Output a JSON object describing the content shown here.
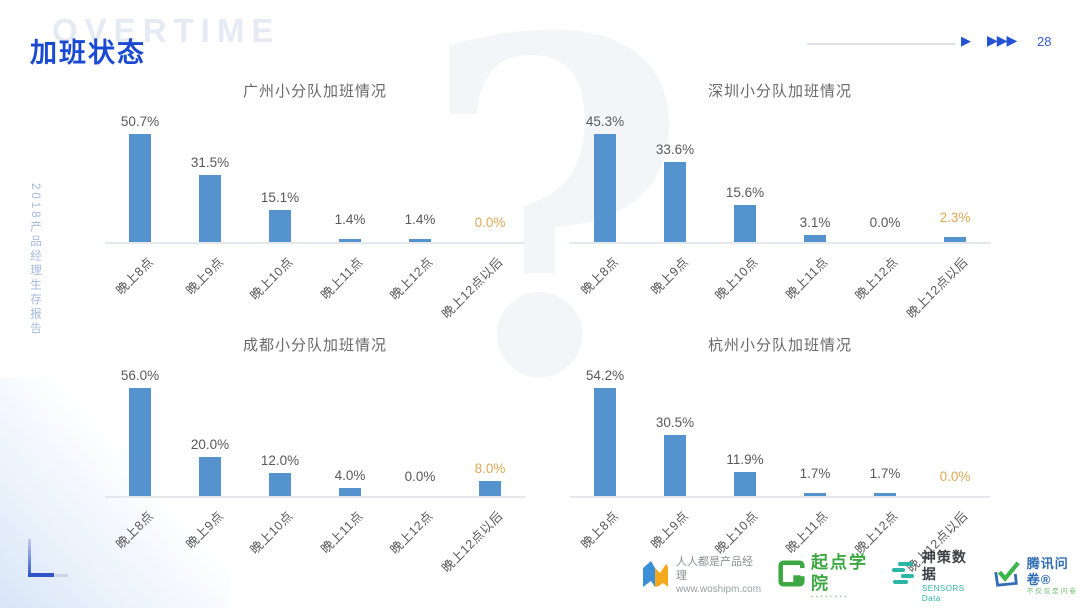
{
  "slide": {
    "title": "加班状态",
    "title_watermark": "OVERTIME",
    "sidebar_text": "2018产品经理生存报告",
    "page_number": "28",
    "nav_arrow": "▶",
    "nav_arrows_group": "▶▶▶",
    "accent_color": "#1b4ad2",
    "bar_color": "#5593ce",
    "highlight_color": "#dfa855"
  },
  "chart_data": [
    {
      "type": "bar",
      "title": "广州小分队加班情况",
      "categories": [
        "晚上8点",
        "晚上9点",
        "晚上10点",
        "晚上11点",
        "晚上12点",
        "晚上12点以后"
      ],
      "values": [
        50.7,
        31.5,
        15.1,
        1.4,
        1.4,
        0.0
      ],
      "value_labels": [
        "50.7%",
        "31.5%",
        "15.1%",
        "1.4%",
        "1.4%",
        "0.0%"
      ],
      "highlight_last": true,
      "bar_color": "#5593ce",
      "grid": false,
      "data_labels": true,
      "ylim": [
        0,
        55
      ]
    },
    {
      "type": "bar",
      "title": "深圳小分队加班情况",
      "categories": [
        "晚上8点",
        "晚上9点",
        "晚上10点",
        "晚上11点",
        "晚上12点",
        "晚上12点以后"
      ],
      "values": [
        45.3,
        33.6,
        15.6,
        3.1,
        0.0,
        2.3
      ],
      "value_labels": [
        "45.3%",
        "33.6%",
        "15.6%",
        "3.1%",
        "0.0%",
        "2.3%"
      ],
      "highlight_last": true,
      "bar_color": "#5593ce",
      "grid": false,
      "data_labels": true,
      "ylim": [
        0,
        50
      ]
    },
    {
      "type": "bar",
      "title": "成都小分队加班情况",
      "categories": [
        "晚上8点",
        "晚上9点",
        "晚上10点",
        "晚上11点",
        "晚上12点",
        "晚上12点以后"
      ],
      "values": [
        56.0,
        20.0,
        12.0,
        4.0,
        0.0,
        8.0
      ],
      "value_labels": [
        "56.0%",
        "20.0%",
        "12.0%",
        "4.0%",
        "0.0%",
        "8.0%"
      ],
      "highlight_last": true,
      "bar_color": "#5593ce",
      "grid": false,
      "data_labels": true,
      "ylim": [
        0,
        60
      ]
    },
    {
      "type": "bar",
      "title": "杭州小分队加班情况",
      "categories": [
        "晚上8点",
        "晚上9点",
        "晚上10点",
        "晚上11点",
        "晚上12点",
        "晚上12点以后"
      ],
      "values": [
        54.2,
        30.5,
        11.9,
        1.7,
        1.7,
        0.0
      ],
      "value_labels": [
        "54.2%",
        "30.5%",
        "11.9%",
        "1.7%",
        "1.7%",
        "0.0%"
      ],
      "highlight_last": true,
      "bar_color": "#5593ce",
      "grid": false,
      "data_labels": true,
      "ylim": [
        0,
        60
      ]
    }
  ],
  "footer": {
    "logos": [
      {
        "name": "woshipm",
        "line1": "人人都是产品经理",
        "line2": "www.woshipm.com"
      },
      {
        "name": "qidian-academy",
        "text": "起点学院",
        "subtext": "▪▪▪▪▪▪▪▪"
      },
      {
        "name": "sensors-data",
        "text": "神策数据",
        "subtext": "SENSORS Data"
      },
      {
        "name": "tencent-wenjuan",
        "text": "腾讯问卷®",
        "subtext": "不仅仅是问卷"
      }
    ]
  }
}
